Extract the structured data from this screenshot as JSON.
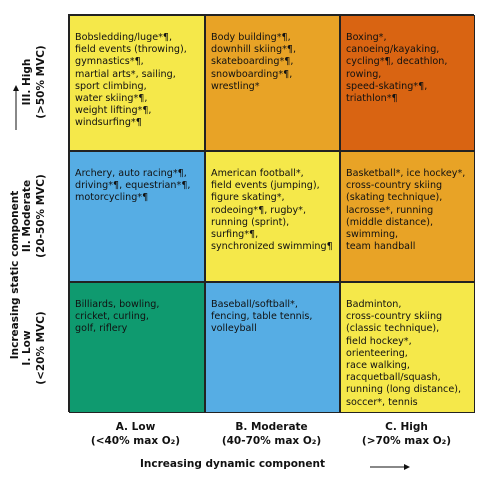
{
  "cells": [
    {
      "row": "high",
      "col": "low",
      "color": "#f5e84a",
      "lines": [
        "Bobsledding/luge*¶,",
        "field events (throwing),",
        "gymnastics*¶,",
        "martial arts*, sailing,",
        "sport climbing,",
        "water skiing*¶,",
        "weight lifting*¶,",
        "windsurfing*¶"
      ]
    },
    {
      "row": "high",
      "col": "moderate",
      "color": "#e8a326",
      "lines": [
        "Body building*¶,",
        "downhill skiing*¶,",
        "skateboarding*¶,",
        "snowboarding*¶,",
        "wrestling*"
      ]
    },
    {
      "row": "high",
      "col": "high",
      "color": "#d96412",
      "lines": [
        "Boxing*,",
        "canoeing/kayaking,",
        "cycling*¶, decathlon,",
        "rowing,",
        "speed-skating*¶,",
        "triathlon*¶"
      ]
    },
    {
      "row": "moderate",
      "col": "low",
      "color": "#56ade4",
      "lines": [
        "Archery, auto racing*¶,",
        "driving*¶, equestrian*¶,",
        "motorcycling*¶"
      ]
    },
    {
      "row": "moderate",
      "col": "moderate",
      "color": "#f5e84a",
      "lines": [
        "American football*,",
        "field events (jumping),",
        "figure skating*,",
        "rodeoing*¶, rugby*,",
        "running (sprint),",
        "surfing*¶,",
        "synchronized swimming¶"
      ]
    },
    {
      "row": "moderate",
      "col": "high",
      "color": "#e8a326",
      "lines": [
        "Basketball*, ice hockey*,",
        "cross-country skiing",
        "(skating technique),",
        "lacrosse*, running",
        "(middle distance),",
        "swimming,",
        "team handball"
      ]
    },
    {
      "row": "low",
      "col": "low",
      "color": "#0f9a6f",
      "lines": [
        "Billiards, bowling,",
        "cricket, curling,",
        "golf, riflery"
      ]
    },
    {
      "row": "low",
      "col": "moderate",
      "color": "#56ade4",
      "lines": [
        "Baseball/softball*,",
        "fencing, table tennis,",
        "volleyball"
      ]
    },
    {
      "row": "low",
      "col": "high",
      "color": "#f5e84a",
      "lines": [
        "Badminton,",
        "cross-country skiing",
        "(classic technique),",
        "field hockey*,",
        "orienteering,",
        "race walking,",
        "racquetball/squash,",
        "running (long distance),",
        "soccer*, tennis"
      ]
    }
  ],
  "columns": [
    {
      "name": "A. Low",
      "range": "(<40% max O₂)"
    },
    {
      "name": "B. Moderate",
      "range": "(40-70% max O₂)"
    },
    {
      "name": "C. High",
      "range": "(>70% max O₂)"
    }
  ],
  "rows": [
    {
      "name": "III. High",
      "range": "(>50% MVC)"
    },
    {
      "name": "II. Moderate",
      "range": "(20-50% MVC)"
    },
    {
      "name": "I. Low",
      "range": "(<20% MVC)"
    }
  ],
  "axes": {
    "x_label": "Increasing dynamic component",
    "y_label": "Increasing static component"
  }
}
